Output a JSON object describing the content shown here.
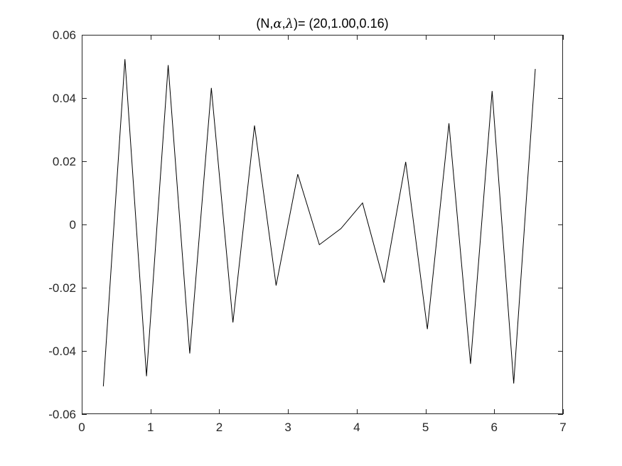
{
  "chart_data": {
    "type": "line",
    "title_parts": {
      "open": "(N,",
      "alpha": "α",
      "sep": ",",
      "lambda": "λ",
      "close": ")= (20,1.00,0.16)"
    },
    "xlabel": "",
    "ylabel": "",
    "xlim": [
      0,
      7
    ],
    "ylim": [
      -0.06,
      0.06
    ],
    "x_ticks": [
      0,
      1,
      2,
      3,
      4,
      5,
      6,
      7
    ],
    "x_tick_labels": [
      "0",
      "1",
      "2",
      "3",
      "4",
      "5",
      "6",
      "7"
    ],
    "y_ticks": [
      -0.06,
      -0.04,
      -0.02,
      0,
      0.02,
      0.04,
      0.06
    ],
    "y_tick_labels": [
      "-0.06",
      "-0.04",
      "-0.02",
      "0",
      "0.02",
      "0.04",
      "0.06"
    ],
    "grid": false,
    "box": true,
    "line_color": "#000000",
    "axis_color": "#262626",
    "series": [
      {
        "x": [
          0.314,
          0.628,
          0.942,
          1.257,
          1.571,
          1.885,
          2.199,
          2.513,
          2.827,
          3.142,
          3.456,
          3.77,
          4.084,
          4.398,
          4.712,
          5.027,
          5.341,
          5.655,
          5.969,
          6.283,
          6.597
        ],
        "y": [
          -0.0512,
          0.0523,
          -0.048,
          0.0504,
          -0.0408,
          0.0432,
          -0.031,
          0.0313,
          -0.0193,
          0.0159,
          -0.0064,
          -0.0013,
          0.0068,
          -0.0184,
          0.0198,
          -0.0331,
          0.032,
          -0.0441,
          0.0422,
          -0.0503,
          0.0492
        ]
      }
    ]
  }
}
